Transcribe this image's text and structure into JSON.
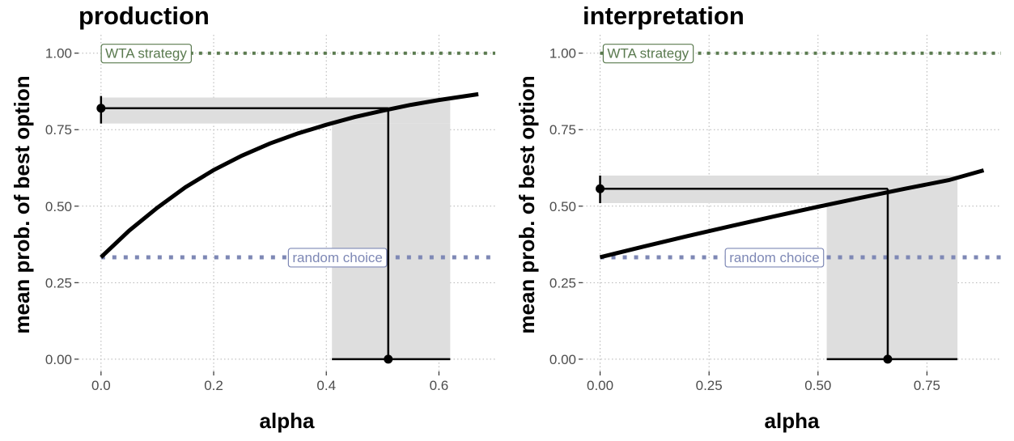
{
  "chart_data": [
    {
      "type": "line",
      "title": "production",
      "xlabel": "alpha",
      "ylabel": "mean prob. of best option",
      "xlim": [
        -0.04,
        0.7
      ],
      "ylim": [
        -0.04,
        1.06
      ],
      "x_ticks": [
        0.0,
        0.2,
        0.4,
        0.6
      ],
      "x_tick_labels": [
        "0.0",
        "0.2",
        "0.4",
        "0.6"
      ],
      "y_ticks": [
        0.0,
        0.25,
        0.5,
        0.75,
        1.0
      ],
      "y_tick_labels": [
        "0.00",
        "0.25",
        "0.50",
        "0.75",
        "1.00"
      ],
      "grid": true,
      "curve": {
        "x": [
          0.0,
          0.05,
          0.1,
          0.15,
          0.2,
          0.25,
          0.3,
          0.35,
          0.4,
          0.45,
          0.5,
          0.55,
          0.6,
          0.67
        ],
        "y": [
          0.333,
          0.42,
          0.495,
          0.562,
          0.618,
          0.665,
          0.705,
          0.738,
          0.766,
          0.791,
          0.812,
          0.831,
          0.847,
          0.866
        ]
      },
      "observed": {
        "x": 0.0,
        "y": 0.82,
        "y_low": 0.77,
        "y_high": 0.86
      },
      "alpha_estimate": {
        "x": 0.51,
        "x_low": 0.41,
        "x_high": 0.62
      },
      "y_band": [
        0.77,
        0.855
      ],
      "reference_lines": [
        {
          "label": "WTA strategy",
          "y": 1.0,
          "color": "#5a7a4f",
          "label_x": 0.08
        },
        {
          "label": "random choice",
          "y": 0.333,
          "color": "#7e88b5",
          "label_x": 0.42
        }
      ]
    },
    {
      "type": "line",
      "title": "interpretation",
      "xlabel": "alpha",
      "ylabel": "mean prob. of best option",
      "xlim": [
        -0.04,
        0.92
      ],
      "ylim": [
        -0.04,
        1.06
      ],
      "x_ticks": [
        0.0,
        0.25,
        0.5,
        0.75
      ],
      "x_tick_labels": [
        "0.00",
        "0.25",
        "0.50",
        "0.75"
      ],
      "y_ticks": [
        0.0,
        0.25,
        0.5,
        0.75,
        1.0
      ],
      "y_tick_labels": [
        "0.00",
        "0.25",
        "0.50",
        "0.75",
        "1.00"
      ],
      "grid": true,
      "curve": {
        "x": [
          0.0,
          0.1,
          0.2,
          0.3,
          0.4,
          0.5,
          0.6,
          0.7,
          0.8,
          0.88
        ],
        "y": [
          0.333,
          0.368,
          0.402,
          0.435,
          0.467,
          0.498,
          0.528,
          0.557,
          0.585,
          0.617
        ]
      },
      "observed": {
        "x": 0.0,
        "y": 0.557,
        "y_low": 0.51,
        "y_high": 0.6
      },
      "alpha_estimate": {
        "x": 0.66,
        "x_low": 0.52,
        "x_high": 0.82
      },
      "y_band": [
        0.51,
        0.6
      ],
      "reference_lines": [
        {
          "label": "WTA strategy",
          "y": 1.0,
          "color": "#5a7a4f",
          "label_x": 0.11
        },
        {
          "label": "random choice",
          "y": 0.333,
          "color": "#7e88b5",
          "label_x": 0.4
        }
      ]
    }
  ]
}
